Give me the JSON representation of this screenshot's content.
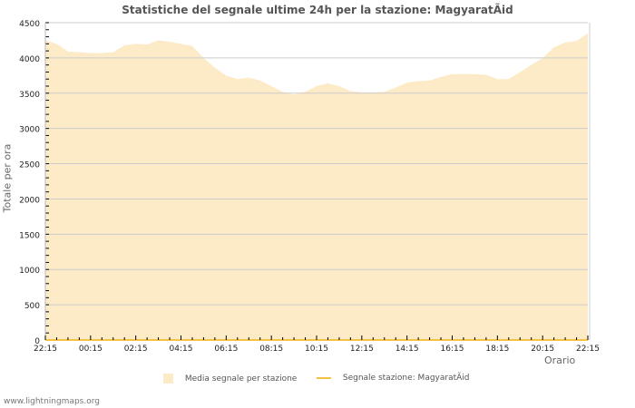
{
  "chart_data": {
    "type": "area",
    "title": "Statistiche del segnale ultime 24h per la stazione: MagyaratÃid",
    "xlabel": "Orario",
    "ylabel": "Totale per ora",
    "ylim": [
      0,
      4500
    ],
    "yticks": [
      0,
      500,
      1000,
      1500,
      2000,
      2500,
      3000,
      3500,
      4000,
      4500
    ],
    "xticks": [
      "22:15",
      "00:15",
      "02:15",
      "04:15",
      "06:15",
      "08:15",
      "10:15",
      "12:15",
      "14:15",
      "16:15",
      "18:15",
      "20:15",
      "22:15"
    ],
    "grid": true,
    "legend_position": "bottom",
    "series": [
      {
        "name": "Media segnale per stazione",
        "type": "area",
        "color": "#fdebc8",
        "x": [
          0,
          0.5,
          1,
          1.5,
          2,
          2.5,
          3,
          3.5,
          4,
          4.5,
          5,
          5.5,
          6,
          6.5,
          7,
          7.5,
          8,
          8.5,
          9,
          9.5,
          10,
          10.5,
          11,
          11.5,
          12,
          12.5,
          13,
          13.5,
          14,
          14.5,
          15,
          15.5,
          16,
          16.5,
          17,
          17.5,
          18,
          18.5,
          19,
          19.5,
          20,
          20.5,
          21,
          21.5,
          22,
          22.5,
          23,
          23.5,
          24
        ],
        "values": [
          4250,
          4200,
          4090,
          4080,
          4070,
          4070,
          4080,
          4180,
          4200,
          4190,
          4250,
          4230,
          4200,
          4170,
          4000,
          3860,
          3750,
          3700,
          3720,
          3680,
          3600,
          3520,
          3480,
          3520,
          3600,
          3640,
          3600,
          3530,
          3510,
          3510,
          3520,
          3580,
          3650,
          3670,
          3680,
          3730,
          3770,
          3770,
          3770,
          3760,
          3700,
          3700,
          3800,
          3900,
          4000,
          4150,
          4220,
          4240,
          4350
        ]
      },
      {
        "name": "Segnale stazione: MagyaratÃid",
        "type": "line",
        "color": "#f5c242",
        "values": [
          0,
          0,
          0,
          0,
          0,
          0,
          0,
          0,
          0,
          0,
          0,
          0,
          0
        ]
      }
    ]
  },
  "legend": {
    "item1": "Media segnale per stazione",
    "item2": "Segnale stazione: MagyaratÃid"
  },
  "footer": "www.lightningmaps.org"
}
